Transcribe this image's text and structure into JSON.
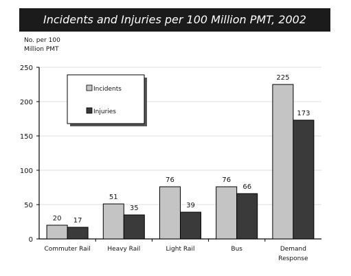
{
  "chart_data": {
    "type": "bar",
    "title": "Incidents and Injuries per 100 Million PMT, 2002",
    "ylabel": "No. per 100\nMillion PMT",
    "xlabel": "",
    "ylim": [
      0,
      250
    ],
    "yticks": [
      0,
      50,
      100,
      150,
      200,
      250
    ],
    "categories": [
      "Commuter Rail",
      "Heavy Rail",
      "Light Rail",
      "Bus",
      "Demand\nResponse"
    ],
    "series": [
      {
        "name": "Incidents",
        "values": [
          20,
          51,
          76,
          76,
          225
        ],
        "color": "#c4c4c4"
      },
      {
        "name": "Injuries",
        "values": [
          17,
          35,
          39,
          66,
          173
        ],
        "color": "#3a3a3a"
      }
    ],
    "grid": true,
    "legend": "top-left",
    "data_labels": true
  }
}
